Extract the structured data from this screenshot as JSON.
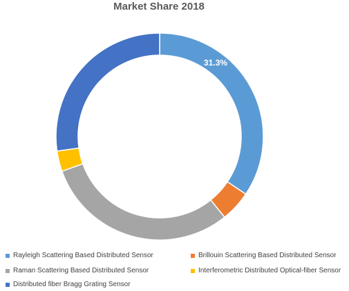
{
  "chart_data": {
    "type": "pie",
    "variant": "donut",
    "title": "Market Share 2018",
    "series": [
      {
        "name": "Market Share 2018",
        "slices": [
          {
            "label": "Rayleigh Scattering Based Distributed Sensor",
            "value": 31.3,
            "color": "#5B9BD5",
            "data_label": "31.3%"
          },
          {
            "label": "Brillouin Scattering Based Distributed Sensor",
            "value": 4.4,
            "color": "#ED7D31",
            "data_label": ""
          },
          {
            "label": "Raman Scattering Based Distributed Sensor",
            "value": 27.6,
            "color": "#A5A5A5",
            "data_label": ""
          },
          {
            "label": "Interferometric Distributed Optical-fiber Sensor",
            "value": 2.9,
            "color": "#FFC000",
            "data_label": ""
          },
          {
            "label": "Distributed fiber Bragg Grating Sensor",
            "value": 24.8,
            "color": "#4472C4",
            "data_label": ""
          }
        ]
      }
    ],
    "legend": {
      "placement": "bottom",
      "columns": 2
    },
    "grid": false
  }
}
